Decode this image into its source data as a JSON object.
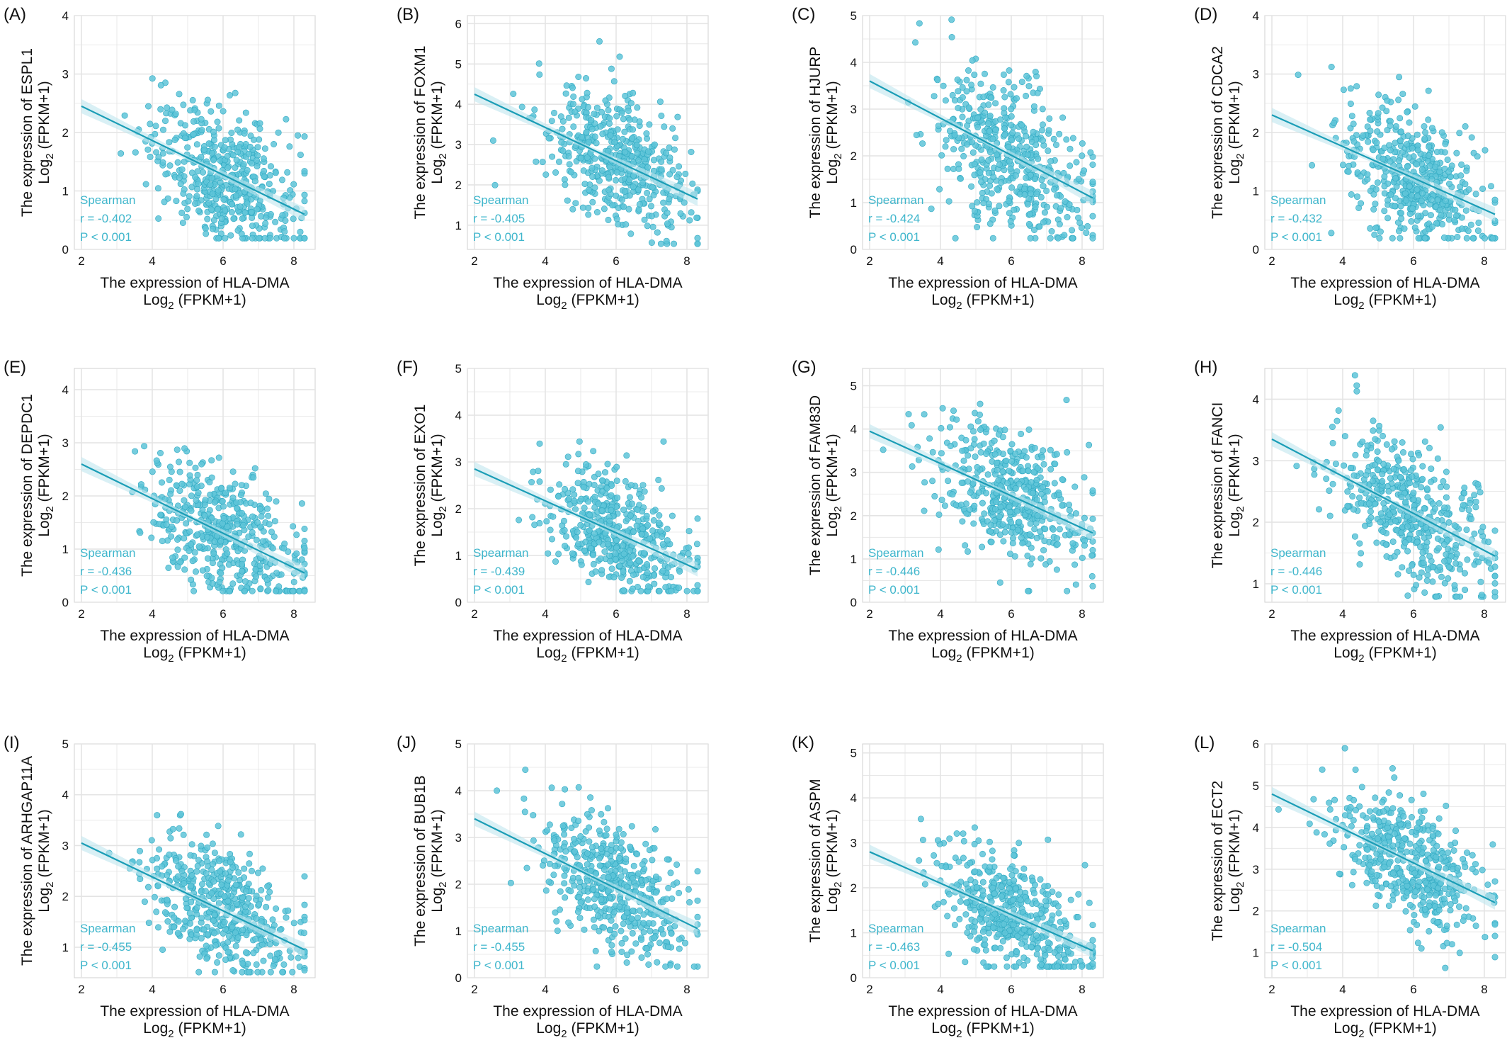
{
  "colors": {
    "point": "#5ec4d8",
    "point_edge": "#2fa9c2",
    "line": "#1a9db6",
    "band": "#bfe6ee",
    "grid": "#e4e4e4",
    "axis_text": "#111111",
    "stats_text": "#3fb6cc"
  },
  "common": {
    "xlabel_line1": "The expression of HLA-DMA",
    "xlabel_line2_pre": "Log",
    "xlabel_line2_sub": "2",
    "xlabel_line2_post": " (FPKM+1)",
    "ylabel_pre": "The expression of ",
    "ylabel_line2_pre": "Log",
    "ylabel_line2_sub": "2",
    "ylabel_line2_post": " (FPKM+1)",
    "stat_method": "Spearman",
    "x_ticks": [
      "2",
      "4",
      "6",
      "8"
    ]
  },
  "chart_data": [
    {
      "type": "scatter",
      "panel_label": "(A)",
      "gene": "ESPL1",
      "r_text": "r = -0.402",
      "p_text": "P < 0.001",
      "xlim": [
        1.8,
        8.6
      ],
      "ylim": [
        0,
        4
      ],
      "y_ticks": [
        "0",
        "1",
        "2",
        "3",
        "4"
      ],
      "fit": {
        "x": [
          2.0,
          8.3
        ],
        "y": [
          2.45,
          0.6
        ]
      },
      "point_count": 480,
      "y_spread": 0.55
    },
    {
      "type": "scatter",
      "panel_label": "(B)",
      "gene": "FOXM1",
      "r_text": "r = -0.405",
      "p_text": "P < 0.001",
      "xlim": [
        1.8,
        8.6
      ],
      "ylim": [
        0.4,
        6.2
      ],
      "y_ticks": [
        "1",
        "2",
        "3",
        "4",
        "5",
        "6"
      ],
      "fit": {
        "x": [
          2.0,
          8.3
        ],
        "y": [
          4.25,
          1.65
        ]
      },
      "point_count": 480,
      "y_spread": 0.75
    },
    {
      "type": "scatter",
      "panel_label": "(C)",
      "gene": "HJURP",
      "r_text": "r = -0.424",
      "p_text": "P < 0.001",
      "xlim": [
        1.8,
        8.6
      ],
      "ylim": [
        0,
        5
      ],
      "y_ticks": [
        "0",
        "1",
        "2",
        "3",
        "4",
        "5"
      ],
      "fit": {
        "x": [
          2.0,
          8.3
        ],
        "y": [
          3.6,
          1.1
        ]
      },
      "point_count": 480,
      "y_spread": 0.8
    },
    {
      "type": "scatter",
      "panel_label": "(D)",
      "gene": "CDCA2",
      "r_text": "r = -0.432",
      "p_text": "P < 0.001",
      "xlim": [
        1.8,
        8.6
      ],
      "ylim": [
        0,
        4
      ],
      "y_ticks": [
        "0",
        "1",
        "2",
        "3",
        "4"
      ],
      "fit": {
        "x": [
          2.0,
          8.3
        ],
        "y": [
          2.3,
          0.6
        ]
      },
      "point_count": 480,
      "y_spread": 0.55
    },
    {
      "type": "scatter",
      "panel_label": "(E)",
      "gene": "DEPDC1",
      "r_text": "r = -0.436",
      "p_text": "P < 0.001",
      "xlim": [
        1.8,
        8.6
      ],
      "ylim": [
        0,
        4.4
      ],
      "y_ticks": [
        "0",
        "1",
        "2",
        "3",
        "4"
      ],
      "fit": {
        "x": [
          2.0,
          8.3
        ],
        "y": [
          2.6,
          0.55
        ]
      },
      "point_count": 480,
      "y_spread": 0.6
    },
    {
      "type": "scatter",
      "panel_label": "(F)",
      "gene": "EXO1",
      "r_text": "r = -0.439",
      "p_text": "P < 0.001",
      "xlim": [
        1.8,
        8.6
      ],
      "ylim": [
        0,
        5
      ],
      "y_ticks": [
        "0",
        "1",
        "2",
        "3",
        "4",
        "5"
      ],
      "fit": {
        "x": [
          2.0,
          8.3
        ],
        "y": [
          2.85,
          0.7
        ]
      },
      "point_count": 480,
      "y_spread": 0.6
    },
    {
      "type": "scatter",
      "panel_label": "(G)",
      "gene": "FAM83D",
      "r_text": "r = -0.446",
      "p_text": "P < 0.001",
      "xlim": [
        1.8,
        8.6
      ],
      "ylim": [
        0,
        5.4
      ],
      "y_ticks": [
        "0",
        "1",
        "2",
        "3",
        "4",
        "5"
      ],
      "fit": {
        "x": [
          2.0,
          8.3
        ],
        "y": [
          3.95,
          1.6
        ]
      },
      "point_count": 480,
      "y_spread": 0.75
    },
    {
      "type": "scatter",
      "panel_label": "(H)",
      "gene": "FANCI",
      "r_text": "r = -0.446",
      "p_text": "P < 0.001",
      "xlim": [
        1.8,
        8.6
      ],
      "ylim": [
        0.7,
        4.5
      ],
      "y_ticks": [
        "1",
        "2",
        "3",
        "4"
      ],
      "fit": {
        "x": [
          2.0,
          8.3
        ],
        "y": [
          3.35,
          1.45
        ]
      },
      "point_count": 480,
      "y_spread": 0.55
    },
    {
      "type": "scatter",
      "panel_label": "(I)",
      "gene": "ARHGAP11A",
      "r_text": "r = -0.455",
      "p_text": "P < 0.001",
      "xlim": [
        1.8,
        8.6
      ],
      "ylim": [
        0.4,
        5
      ],
      "y_ticks": [
        "1",
        "2",
        "3",
        "4",
        "5"
      ],
      "fit": {
        "x": [
          2.0,
          8.3
        ],
        "y": [
          3.05,
          0.95
        ]
      },
      "point_count": 480,
      "y_spread": 0.6
    },
    {
      "type": "scatter",
      "panel_label": "(J)",
      "gene": "BUB1B",
      "r_text": "r = -0.455",
      "p_text": "P < 0.001",
      "xlim": [
        1.8,
        8.6
      ],
      "ylim": [
        0,
        5
      ],
      "y_ticks": [
        "0",
        "1",
        "2",
        "3",
        "4",
        "5"
      ],
      "fit": {
        "x": [
          2.0,
          8.3
        ],
        "y": [
          3.4,
          1.05
        ]
      },
      "point_count": 480,
      "y_spread": 0.65
    },
    {
      "type": "scatter",
      "panel_label": "(K)",
      "gene": "ASPM",
      "r_text": "r = -0.463",
      "p_text": "P < 0.001",
      "xlim": [
        1.8,
        8.6
      ],
      "ylim": [
        0,
        5.2
      ],
      "y_ticks": [
        "0",
        "1",
        "2",
        "3",
        "4",
        "5"
      ],
      "fit": {
        "x": [
          2.0,
          8.3
        ],
        "y": [
          2.8,
          0.6
        ]
      },
      "point_count": 480,
      "y_spread": 0.6
    },
    {
      "type": "scatter",
      "panel_label": "(L)",
      "gene": "ECT2",
      "r_text": "r = -0.504",
      "p_text": "P < 0.001",
      "xlim": [
        1.8,
        8.6
      ],
      "ylim": [
        0.4,
        6
      ],
      "y_ticks": [
        "1",
        "2",
        "3",
        "4",
        "5",
        "6"
      ],
      "fit": {
        "x": [
          2.0,
          8.3
        ],
        "y": [
          4.8,
          2.2
        ]
      },
      "point_count": 480,
      "y_spread": 0.7
    }
  ]
}
